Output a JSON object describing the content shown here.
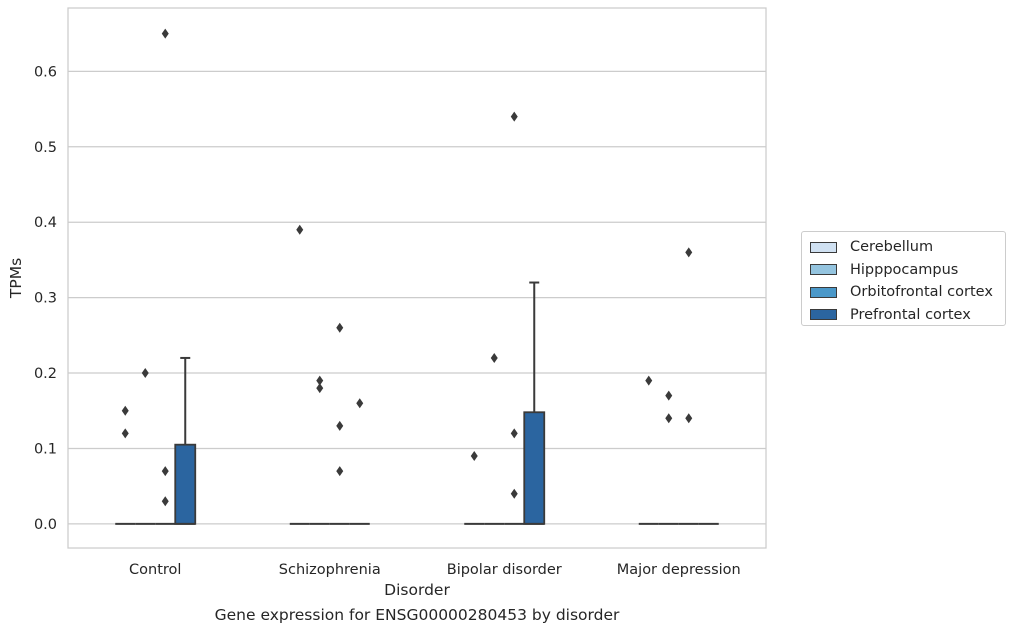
{
  "caption": "Gene expression for ENSG00000280453 by disorder",
  "colors": {
    "Cerebellum": "#d0e1f2",
    "Hipppocampus": "#94c4df",
    "Orbitofrontal cortex": "#4a98c9",
    "Prefrontal cortex": "#2b65a0"
  },
  "chart_data": {
    "type": "box",
    "xlabel": "Disorder",
    "ylabel": "TPMs",
    "ylim": [
      -0.032,
      0.684
    ],
    "yticks": [
      0.0,
      0.1,
      0.2,
      0.3,
      0.4,
      0.5,
      0.6
    ],
    "ytick_labels": [
      "0.0",
      "0.1",
      "0.2",
      "0.3",
      "0.4",
      "0.5",
      "0.6"
    ],
    "grid": "horizontal",
    "legend_position": "right",
    "categories": [
      "Control",
      "Schizophrenia",
      "Bipolar disorder",
      "Major depression"
    ],
    "series": [
      {
        "name": "Cerebellum",
        "boxes": [
          {
            "q1": 0,
            "median": 0,
            "q3": 0,
            "whisker_low": 0,
            "whisker_high": 0,
            "outliers": [
              0.12,
              0.15
            ]
          },
          {
            "q1": 0,
            "median": 0,
            "q3": 0,
            "whisker_low": 0,
            "whisker_high": 0,
            "outliers": [
              0.39
            ]
          },
          {
            "q1": 0,
            "median": 0,
            "q3": 0,
            "whisker_low": 0,
            "whisker_high": 0,
            "outliers": [
              0.09
            ]
          },
          {
            "q1": 0,
            "median": 0,
            "q3": 0,
            "whisker_low": 0,
            "whisker_high": 0,
            "outliers": [
              0.19
            ]
          }
        ]
      },
      {
        "name": "Hipppocampus",
        "boxes": [
          {
            "q1": 0,
            "median": 0,
            "q3": 0,
            "whisker_low": 0,
            "whisker_high": 0,
            "outliers": [
              0.2
            ]
          },
          {
            "q1": 0,
            "median": 0,
            "q3": 0,
            "whisker_low": 0,
            "whisker_high": 0,
            "outliers": [
              0.18,
              0.19
            ]
          },
          {
            "q1": 0,
            "median": 0,
            "q3": 0,
            "whisker_low": 0,
            "whisker_high": 0,
            "outliers": [
              0.22
            ]
          },
          {
            "q1": 0,
            "median": 0,
            "q3": 0,
            "whisker_low": 0,
            "whisker_high": 0,
            "outliers": [
              0.14,
              0.17
            ]
          }
        ]
      },
      {
        "name": "Orbitofrontal cortex",
        "boxes": [
          {
            "q1": 0,
            "median": 0,
            "q3": 0,
            "whisker_low": 0,
            "whisker_high": 0,
            "outliers": [
              0.03,
              0.07,
              0.65
            ]
          },
          {
            "q1": 0,
            "median": 0,
            "q3": 0,
            "whisker_low": 0,
            "whisker_high": 0,
            "outliers": [
              0.07,
              0.13,
              0.26
            ]
          },
          {
            "q1": 0,
            "median": 0,
            "q3": 0,
            "whisker_low": 0,
            "whisker_high": 0,
            "outliers": [
              0.04,
              0.12,
              0.54
            ]
          },
          {
            "q1": 0,
            "median": 0,
            "q3": 0,
            "whisker_low": 0,
            "whisker_high": 0,
            "outliers": [
              0.14,
              0.36
            ]
          }
        ]
      },
      {
        "name": "Prefrontal cortex",
        "boxes": [
          {
            "q1": 0,
            "median": 0,
            "q3": 0.105,
            "whisker_low": 0,
            "whisker_high": 0.22,
            "outliers": []
          },
          {
            "q1": 0,
            "median": 0,
            "q3": 0,
            "whisker_low": 0,
            "whisker_high": 0,
            "outliers": [
              0.16
            ]
          },
          {
            "q1": 0,
            "median": 0,
            "q3": 0.148,
            "whisker_low": 0,
            "whisker_high": 0.32,
            "outliers": []
          },
          {
            "q1": 0,
            "median": 0,
            "q3": 0,
            "whisker_low": 0,
            "whisker_high": 0,
            "outliers": []
          }
        ]
      }
    ]
  }
}
